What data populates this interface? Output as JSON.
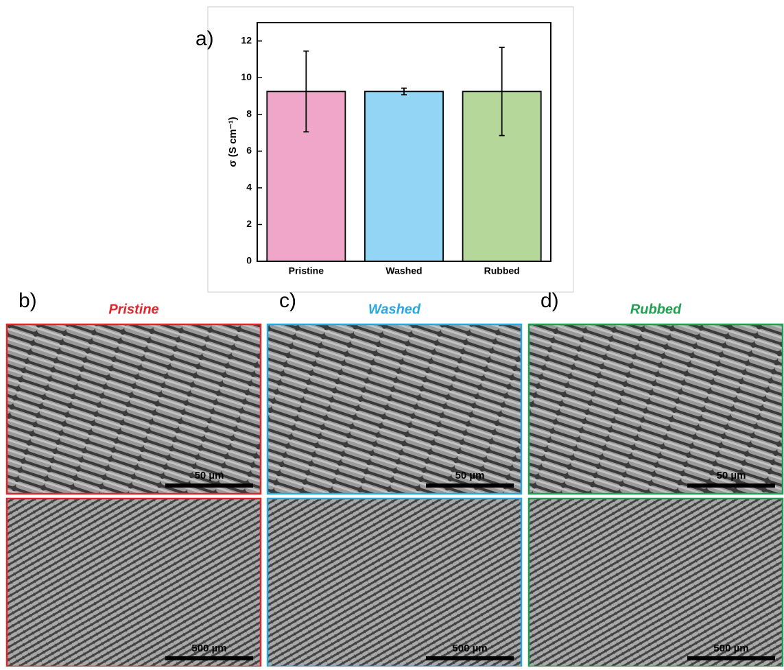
{
  "chart_label": "a)",
  "chart_data": {
    "type": "bar",
    "y_label": "σ (S cm⁻¹)",
    "categories": [
      "Pristine",
      "Washed",
      "Rubbed"
    ],
    "values": [
      9.25,
      9.25,
      9.25
    ],
    "errors": [
      2.2,
      0.18,
      2.4
    ],
    "colors": [
      "#f0a6c8",
      "#93d5f4",
      "#b5d89a"
    ],
    "ylim": [
      0,
      13
    ],
    "yticks": [
      0,
      2,
      4,
      6,
      8,
      10,
      12
    ]
  },
  "panels": [
    {
      "label": "b)",
      "title": "Pristine",
      "color": "#e0262b",
      "scale_bars": [
        "50 µm",
        "500 µm"
      ]
    },
    {
      "label": "c)",
      "title": "Washed",
      "color": "#2aa7de",
      "scale_bars": [
        "50 µm",
        "500 µm"
      ]
    },
    {
      "label": "d)",
      "title": "Rubbed",
      "color": "#1fa050",
      "scale_bars": [
        "50 µm",
        "500 µm"
      ]
    }
  ]
}
